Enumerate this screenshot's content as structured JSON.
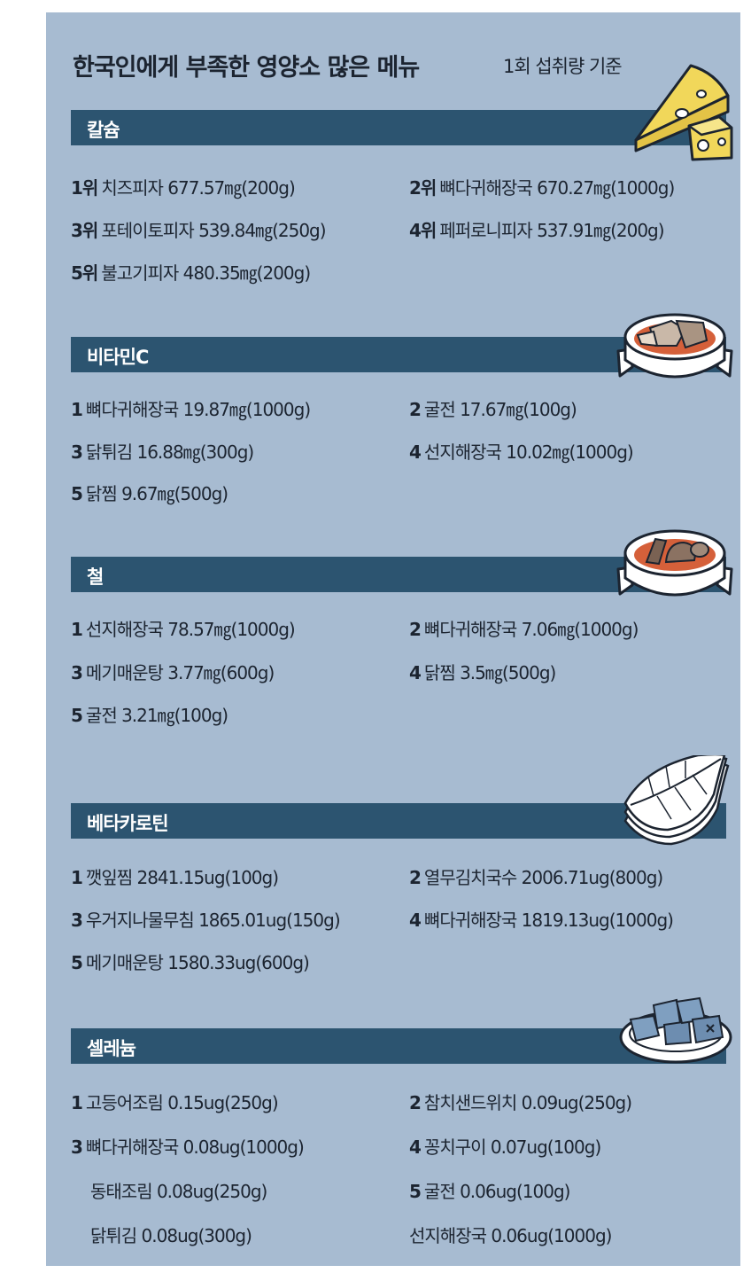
{
  "title": "한국인에게 부족한 영양소 많은 메뉴",
  "subtitle": "1회 섭취량 기준",
  "sections": [
    {
      "name": "칼슘",
      "illustration": "cheese-icon",
      "items": [
        {
          "rank": "1위",
          "text": "치즈피자 677.57㎎(200g)"
        },
        {
          "rank": "2위",
          "text": "뼈다귀해장국 670.27㎎(1000g)"
        },
        {
          "rank": "3위",
          "text": "포테이토피자 539.84㎎(250g)"
        },
        {
          "rank": "4위",
          "text": "페퍼로니피자 537.91㎎(200g)"
        },
        {
          "rank": "5위",
          "text": "불고기피자 480.35㎎(200g)"
        }
      ]
    },
    {
      "name": "비타민C",
      "illustration": "pork-bone-soup-icon",
      "items": [
        {
          "rank": "1",
          "text": "뼈다귀해장국 19.87㎎(1000g)"
        },
        {
          "rank": "2",
          "text": "굴전 17.67㎎(100g)"
        },
        {
          "rank": "3",
          "text": "닭튀김 16.88㎎(300g)"
        },
        {
          "rank": "4",
          "text": "선지해장국 10.02㎎(1000g)"
        },
        {
          "rank": "5",
          "text": "닭찜 9.67㎎(500g)"
        }
      ]
    },
    {
      "name": "철",
      "illustration": "blood-sausage-soup-icon",
      "items": [
        {
          "rank": "1",
          "text": "선지해장국 78.57㎎(1000g)"
        },
        {
          "rank": "2",
          "text": "뼈다귀해장국 7.06㎎(1000g)"
        },
        {
          "rank": "3",
          "text": "메기매운탕 3.77㎎(600g)"
        },
        {
          "rank": "4",
          "text": "닭찜 3.5㎎(500g)"
        },
        {
          "rank": "5",
          "text": "굴전 3.21㎎(100g)"
        }
      ]
    },
    {
      "name": "베타카로틴",
      "illustration": "perilla-leaves-icon",
      "items": [
        {
          "rank": "1",
          "text": "깻잎찜 2841.15ug(100g)"
        },
        {
          "rank": "2",
          "text": "열무김치국수 2006.71ug(800g)"
        },
        {
          "rank": "3",
          "text": "우거지나물무침 1865.01ug(150g)"
        },
        {
          "rank": "4",
          "text": "뼈다귀해장국 1819.13ug(1000g)"
        },
        {
          "rank": "5",
          "text": "메기매운탕 1580.33ug(600g)"
        }
      ]
    },
    {
      "name": "셀레늄",
      "illustration": "braised-mackerel-icon",
      "items": [
        {
          "rank": "1",
          "text": "고등어조림 0.15ug(250g)"
        },
        {
          "rank": "2",
          "text": "참치샌드위치 0.09ug(250g)"
        },
        {
          "rank": "3",
          "text": "뼈다귀해장국 0.08ug(1000g)"
        },
        {
          "rank": "4",
          "text": "꽁치구이 0.07ug(100g)"
        },
        {
          "rank": "",
          "text": "동태조림 0.08ug(250g)"
        },
        {
          "rank": "5",
          "text": "굴전 0.06ug(100g)"
        },
        {
          "rank": "",
          "text": "닭튀김 0.08ug(300g)"
        },
        {
          "rank": "",
          "text": "선지해장국 0.06ug(1000g)"
        }
      ]
    }
  ],
  "colors": {
    "background": "#a7bbd1",
    "bar": "#2c5470",
    "bar_text": "#ffffff",
    "text": "#1c2430",
    "cheese": "#f1d75a"
  }
}
